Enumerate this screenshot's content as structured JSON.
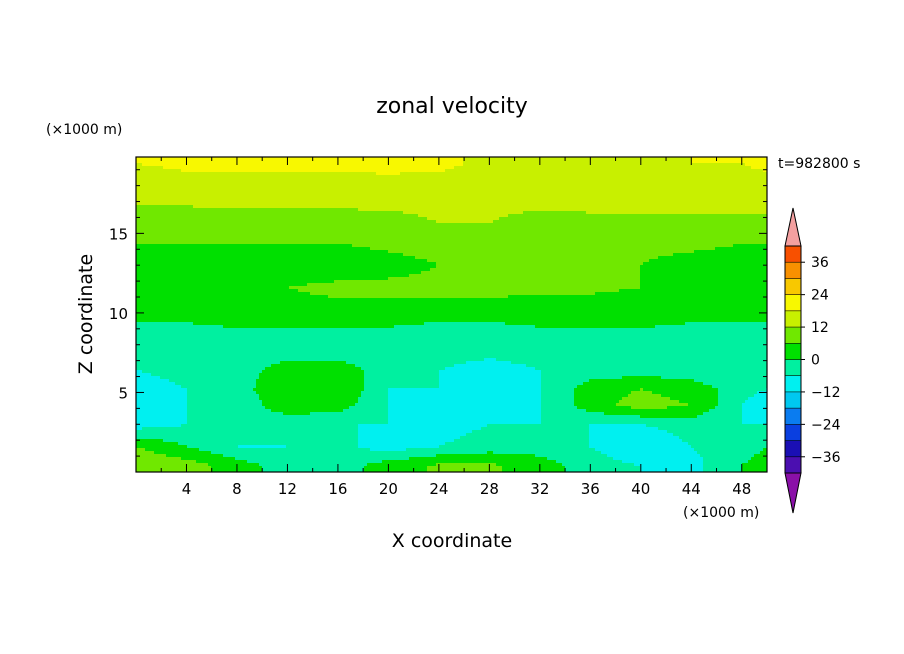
{
  "chart_data": {
    "type": "heatmap",
    "title": "zonal velocity",
    "xlabel": "X coordinate",
    "ylabel": "Z coordinate",
    "x_unit": "(×1000 m)",
    "y_unit": "(×1000 m)",
    "time_label": "t=982800 s",
    "xlim": [
      0,
      50
    ],
    "ylim": [
      0,
      19.8
    ],
    "x_ticks": [
      4,
      8,
      12,
      16,
      20,
      24,
      28,
      32,
      36,
      40,
      44,
      48
    ],
    "y_ticks": [
      5,
      10,
      15
    ],
    "colorbar": {
      "levels": [
        -42,
        -36,
        -30,
        -24,
        -18,
        -12,
        -6,
        0,
        6,
        12,
        18,
        24,
        30,
        36,
        42
      ],
      "labels": [
        -36,
        -24,
        -12,
        0,
        12,
        24,
        36
      ],
      "colors": [
        "#6a0da8",
        "#4b0fb0",
        "#1a0fb4",
        "#0a3fe0",
        "#0a7cf0",
        "#00c8f0",
        "#00f0f0",
        "#00f0a0",
        "#00e000",
        "#70e800",
        "#c8f000",
        "#f8f800",
        "#f8c800",
        "#f89000",
        "#f85000",
        "#e81818",
        "#f4a0a0"
      ],
      "extend": "both",
      "under_color": "#8a10a8",
      "over_color": "#f4a0a0"
    },
    "rows_z": [
      0.4,
      1.6,
      3.0,
      4.2,
      5.2,
      6.4,
      7.6,
      8.8,
      10.0,
      11.6,
      13.0,
      14.4,
      15.6,
      17.0,
      18.4,
      19.4
    ],
    "cols_x": [
      0,
      4,
      8,
      12,
      16,
      20,
      24,
      28,
      32,
      36,
      40,
      44,
      48,
      50
    ],
    "values": [
      [
        12,
        9,
        3,
        -3,
        -3,
        3,
        7,
        7,
        3,
        -3,
        -6,
        -8,
        0,
        3
      ],
      [
        6,
        0,
        -6,
        -6,
        -4,
        -9,
        -6,
        -3,
        -3,
        -6,
        -12,
        -6,
        -3,
        0
      ],
      [
        -9,
        -6,
        -6,
        -6,
        -6,
        -6,
        -9,
        -6,
        -6,
        -6,
        -6,
        -3,
        -6,
        -6
      ],
      [
        -12,
        -6,
        -6,
        6,
        3,
        -6,
        -9,
        -9,
        -6,
        3,
        9,
        6,
        -6,
        -12
      ],
      [
        -9,
        -6,
        -3,
        6,
        6,
        -6,
        -6,
        -9,
        -6,
        3,
        6,
        3,
        -3,
        -6
      ],
      [
        -6,
        -4,
        -3,
        3,
        3,
        -3,
        -6,
        -9,
        -6,
        -3,
        -3,
        -3,
        -6,
        -3
      ],
      [
        -3,
        -4,
        -3,
        -3,
        -3,
        -3,
        -3,
        -4,
        -3,
        -3,
        -3,
        -4,
        -3,
        -3
      ],
      [
        -1,
        -1,
        -1,
        -1,
        -1,
        -1,
        -3,
        -3,
        -1,
        -1,
        -1,
        -1,
        -1,
        -1
      ],
      [
        1,
        1,
        3,
        3,
        3,
        3,
        3,
        3,
        3,
        3,
        3,
        1,
        1,
        1
      ],
      [
        1,
        1,
        3,
        6,
        8,
        8,
        8,
        8,
        7,
        7,
        6,
        3,
        1,
        1
      ],
      [
        3,
        3,
        3,
        1,
        1,
        3,
        6,
        8,
        8,
        8,
        6,
        3,
        3,
        3
      ],
      [
        6,
        6,
        6,
        6,
        6,
        8,
        9,
        9,
        8,
        8,
        8,
        8,
        6,
        6
      ],
      [
        8,
        8,
        8,
        8,
        8,
        9,
        12,
        12,
        9,
        9,
        9,
        9,
        9,
        9
      ],
      [
        13,
        13,
        14,
        14,
        14,
        14,
        14,
        14,
        14,
        15,
        15,
        16,
        16,
        16
      ],
      [
        16,
        17,
        17,
        17,
        17,
        17,
        17,
        17,
        16,
        17,
        16,
        16,
        17,
        17
      ],
      [
        18,
        19,
        19,
        19,
        19,
        20,
        19,
        17,
        17,
        17,
        17,
        18,
        18,
        19
      ]
    ]
  }
}
